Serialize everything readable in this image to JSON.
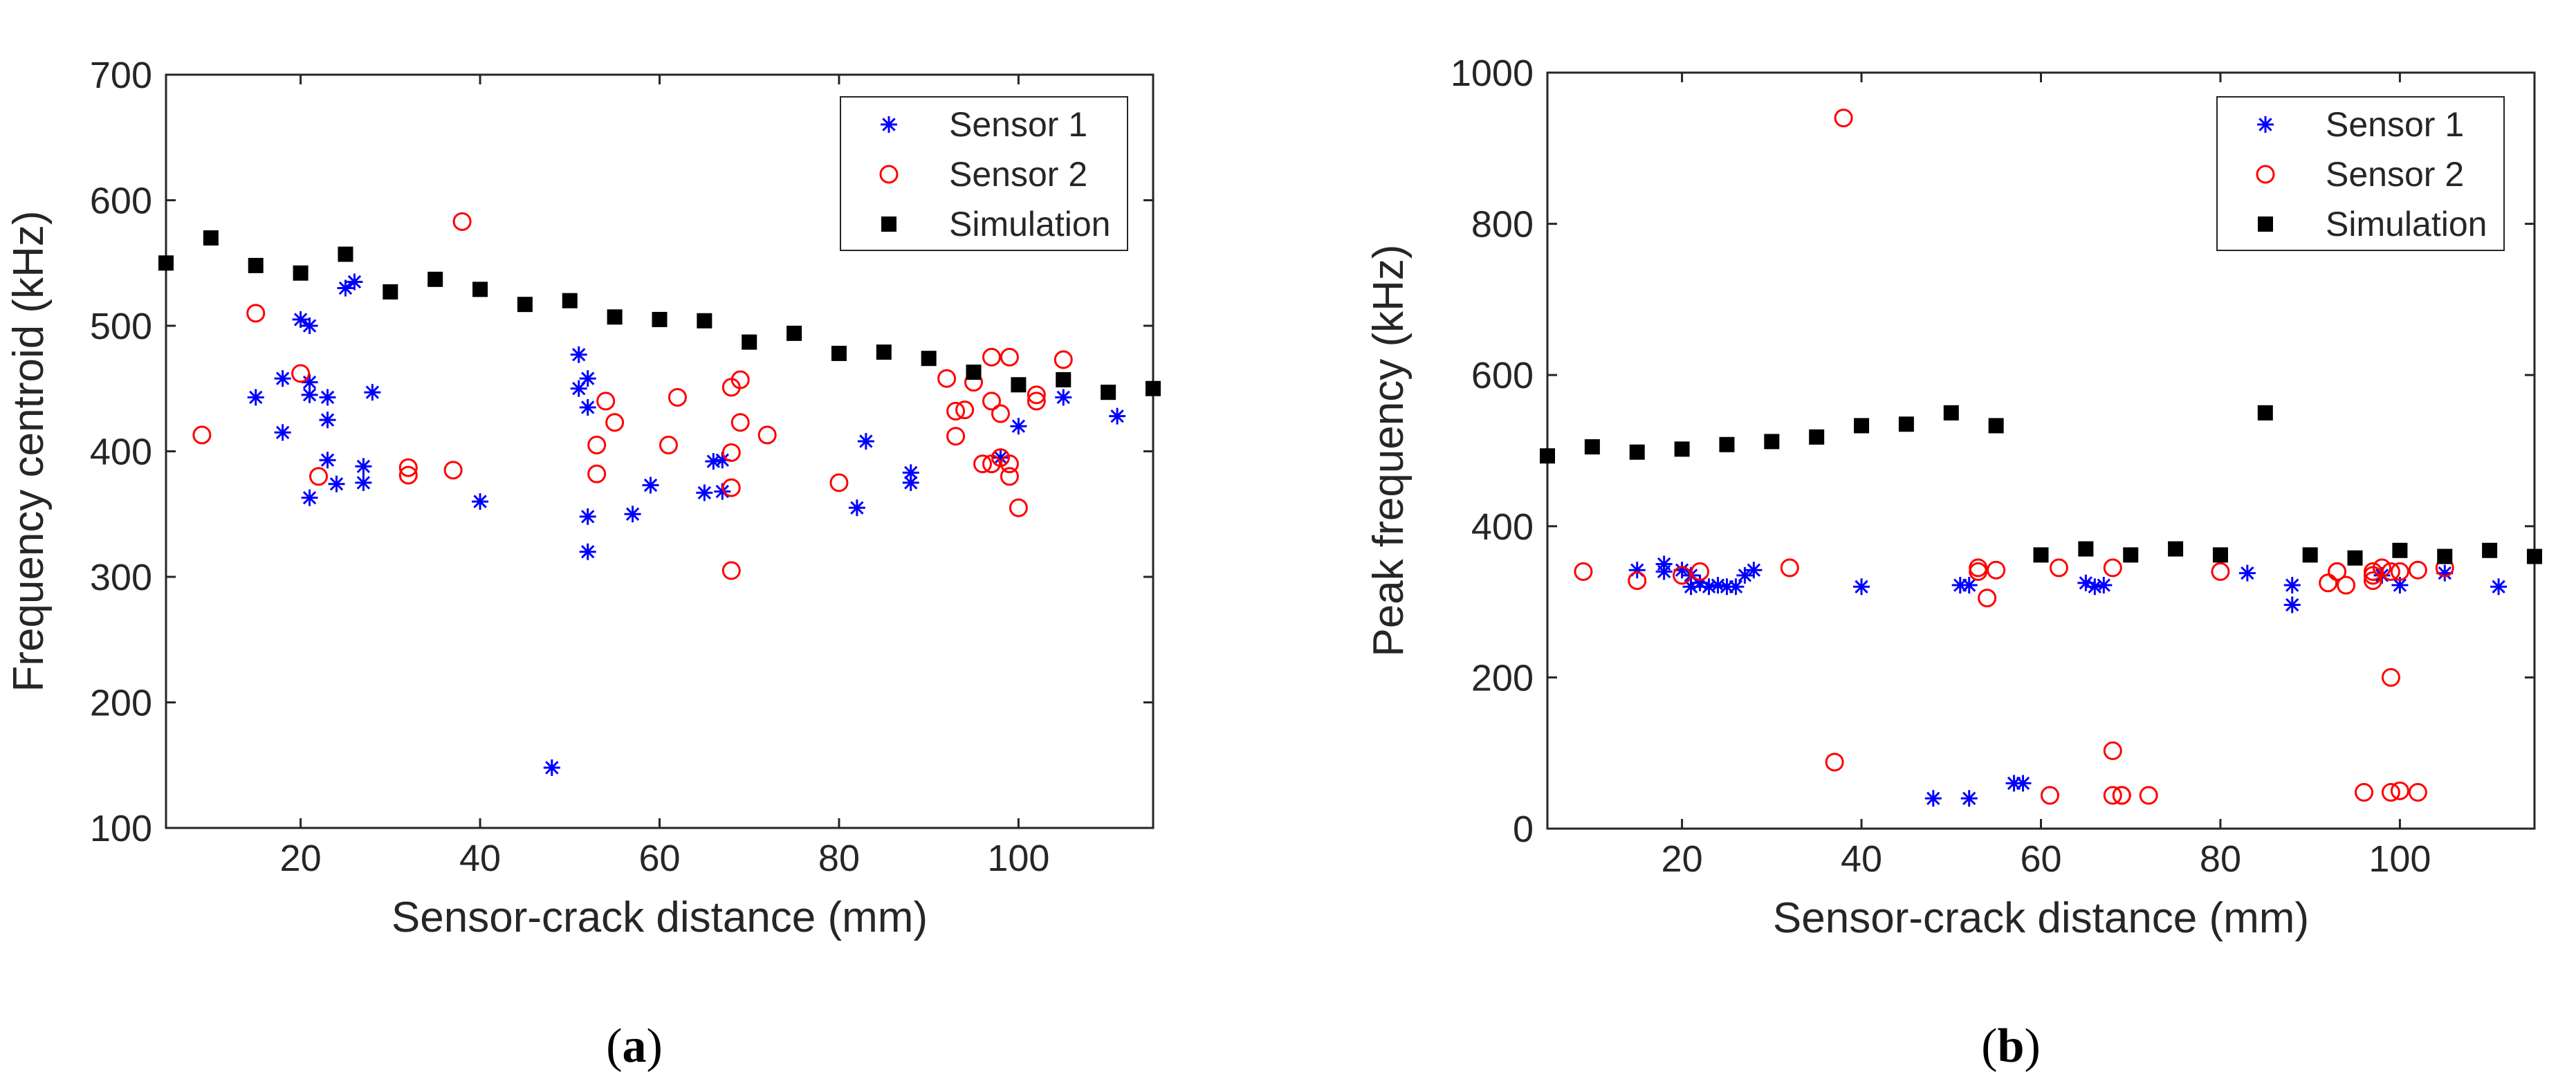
{
  "colors": {
    "sensor1": "#0000ff",
    "sensor2": "#ff0000",
    "simulation": "#000000",
    "axis": "#262626"
  },
  "chart_data": [
    {
      "type": "scatter",
      "caption_letter": "a",
      "xlabel": "Sensor-crack distance (mm)",
      "ylabel": "Frequency centroid (kHz)",
      "xlim": [
        5,
        115
      ],
      "ylim": [
        100,
        700
      ],
      "xticks": [
        20,
        40,
        60,
        80,
        100
      ],
      "yticks": [
        100,
        200,
        300,
        400,
        500,
        600,
        700
      ],
      "legend_position": "top-right",
      "series": [
        {
          "name": "Sensor 1",
          "marker": "asterisk",
          "points": [
            [
              15,
              443
            ],
            [
              18,
              415
            ],
            [
              18,
              458
            ],
            [
              20,
              505
            ],
            [
              21,
              500
            ],
            [
              21,
              455
            ],
            [
              21,
              445
            ],
            [
              21,
              363
            ],
            [
              23,
              443
            ],
            [
              23,
              393
            ],
            [
              23,
              425
            ],
            [
              24,
              374
            ],
            [
              25,
              530
            ],
            [
              26,
              535
            ],
            [
              27,
              388
            ],
            [
              27,
              375
            ],
            [
              28,
              447
            ],
            [
              40,
              360
            ],
            [
              48,
              148
            ],
            [
              51,
              477
            ],
            [
              51,
              450
            ],
            [
              52,
              458
            ],
            [
              52,
              435
            ],
            [
              52,
              348
            ],
            [
              52,
              320
            ],
            [
              57,
              350
            ],
            [
              59,
              373
            ],
            [
              65,
              367
            ],
            [
              66,
              392
            ],
            [
              67,
              393
            ],
            [
              67,
              368
            ],
            [
              82,
              355
            ],
            [
              83,
              408
            ],
            [
              88,
              375
            ],
            [
              88,
              383
            ],
            [
              98,
              395
            ],
            [
              100,
              420
            ],
            [
              105,
              443
            ],
            [
              111,
              428
            ]
          ]
        },
        {
          "name": "Sensor 2",
          "marker": "circle",
          "points": [
            [
              9,
              413
            ],
            [
              15,
              510
            ],
            [
              20,
              462
            ],
            [
              22,
              380
            ],
            [
              32,
              387
            ],
            [
              32,
              381
            ],
            [
              37,
              385
            ],
            [
              38,
              583
            ],
            [
              53,
              382
            ],
            [
              53,
              405
            ],
            [
              54,
              440
            ],
            [
              55,
              423
            ],
            [
              61,
              405
            ],
            [
              62,
              443
            ],
            [
              68,
              451
            ],
            [
              68,
              399
            ],
            [
              68,
              371
            ],
            [
              68,
              305
            ],
            [
              69,
              457
            ],
            [
              69,
              423
            ],
            [
              72,
              413
            ],
            [
              80,
              375
            ],
            [
              92,
              458
            ],
            [
              93,
              412
            ],
            [
              93,
              432
            ],
            [
              94,
              433
            ],
            [
              95,
              455
            ],
            [
              96,
              390
            ],
            [
              97,
              475
            ],
            [
              97,
              440
            ],
            [
              97,
              390
            ],
            [
              98,
              395
            ],
            [
              98,
              430
            ],
            [
              99,
              475
            ],
            [
              99,
              390
            ],
            [
              99,
              380
            ],
            [
              100,
              355
            ],
            [
              102,
              440
            ],
            [
              102,
              445
            ],
            [
              105,
              473
            ]
          ]
        },
        {
          "name": "Simulation",
          "marker": "square",
          "points": [
            [
              5,
              550
            ],
            [
              10,
              570
            ],
            [
              15,
              548
            ],
            [
              20,
              542
            ],
            [
              25,
              557
            ],
            [
              30,
              527
            ],
            [
              35,
              537
            ],
            [
              40,
              529
            ],
            [
              45,
              517
            ],
            [
              50,
              520
            ],
            [
              55,
              507
            ],
            [
              60,
              505
            ],
            [
              65,
              504
            ],
            [
              70,
              487
            ],
            [
              75,
              494
            ],
            [
              80,
              478
            ],
            [
              85,
              479
            ],
            [
              90,
              474
            ],
            [
              95,
              463
            ],
            [
              100,
              453
            ],
            [
              105,
              457
            ],
            [
              110,
              447
            ],
            [
              115,
              450
            ]
          ]
        }
      ]
    },
    {
      "type": "scatter",
      "caption_letter": "b",
      "xlabel": "Sensor-crack distance (mm)",
      "ylabel": "Peak frequency (kHz)",
      "xlim": [
        5,
        115
      ],
      "ylim": [
        0,
        1000
      ],
      "xticks": [
        20,
        40,
        60,
        80,
        100
      ],
      "yticks": [
        0,
        200,
        400,
        600,
        800,
        1000
      ],
      "legend_position": "top-right",
      "series": [
        {
          "name": "Sensor 1",
          "marker": "asterisk",
          "points": [
            [
              15,
              342
            ],
            [
              18,
              350
            ],
            [
              18,
              340
            ],
            [
              20,
              342
            ],
            [
              21,
              335
            ],
            [
              21,
              320
            ],
            [
              22,
              325
            ],
            [
              23,
              320
            ],
            [
              24,
              322
            ],
            [
              25,
              320
            ],
            [
              26,
              320
            ],
            [
              27,
              335
            ],
            [
              28,
              342
            ],
            [
              40,
              320
            ],
            [
              48,
              40
            ],
            [
              51,
              322
            ],
            [
              52,
              322
            ],
            [
              52,
              40
            ],
            [
              57,
              60
            ],
            [
              58,
              60
            ],
            [
              65,
              325
            ],
            [
              66,
              320
            ],
            [
              67,
              322
            ],
            [
              83,
              338
            ],
            [
              88,
              322
            ],
            [
              88,
              296
            ],
            [
              98,
              335
            ],
            [
              100,
              322
            ],
            [
              105,
              338
            ],
            [
              111,
              320
            ]
          ]
        },
        {
          "name": "Sensor 2",
          "marker": "circle",
          "points": [
            [
              9,
              340
            ],
            [
              15,
              328
            ],
            [
              20,
              335
            ],
            [
              22,
              340
            ],
            [
              32,
              345
            ],
            [
              37,
              88
            ],
            [
              38,
              940
            ],
            [
              53,
              345
            ],
            [
              53,
              340
            ],
            [
              54,
              305
            ],
            [
              55,
              342
            ],
            [
              61,
              44
            ],
            [
              62,
              345
            ],
            [
              68,
              345
            ],
            [
              68,
              103
            ],
            [
              68,
              44
            ],
            [
              69,
              44
            ],
            [
              69,
              44
            ],
            [
              72,
              44
            ],
            [
              80,
              340
            ],
            [
              92,
              325
            ],
            [
              93,
              340
            ],
            [
              93,
              340
            ],
            [
              94,
              322
            ],
            [
              96,
              48
            ],
            [
              97,
              340
            ],
            [
              97,
              328
            ],
            [
              97,
              335
            ],
            [
              98,
              345
            ],
            [
              99,
              200
            ],
            [
              99,
              340
            ],
            [
              99,
              48
            ],
            [
              100,
              340
            ],
            [
              100,
              50
            ],
            [
              102,
              48
            ],
            [
              102,
              342
            ],
            [
              105,
              345
            ]
          ]
        },
        {
          "name": "Simulation",
          "marker": "square",
          "points": [
            [
              5,
              493
            ],
            [
              10,
              505
            ],
            [
              15,
              498
            ],
            [
              20,
              502
            ],
            [
              25,
              508
            ],
            [
              30,
              512
            ],
            [
              35,
              518
            ],
            [
              40,
              533
            ],
            [
              45,
              535
            ],
            [
              50,
              550
            ],
            [
              55,
              533
            ],
            [
              60,
              362
            ],
            [
              65,
              370
            ],
            [
              70,
              362
            ],
            [
              75,
              370
            ],
            [
              80,
              362
            ],
            [
              85,
              550
            ],
            [
              90,
              362
            ],
            [
              95,
              358
            ],
            [
              100,
              368
            ],
            [
              105,
              360
            ],
            [
              110,
              368
            ],
            [
              115,
              360
            ]
          ]
        }
      ]
    }
  ]
}
